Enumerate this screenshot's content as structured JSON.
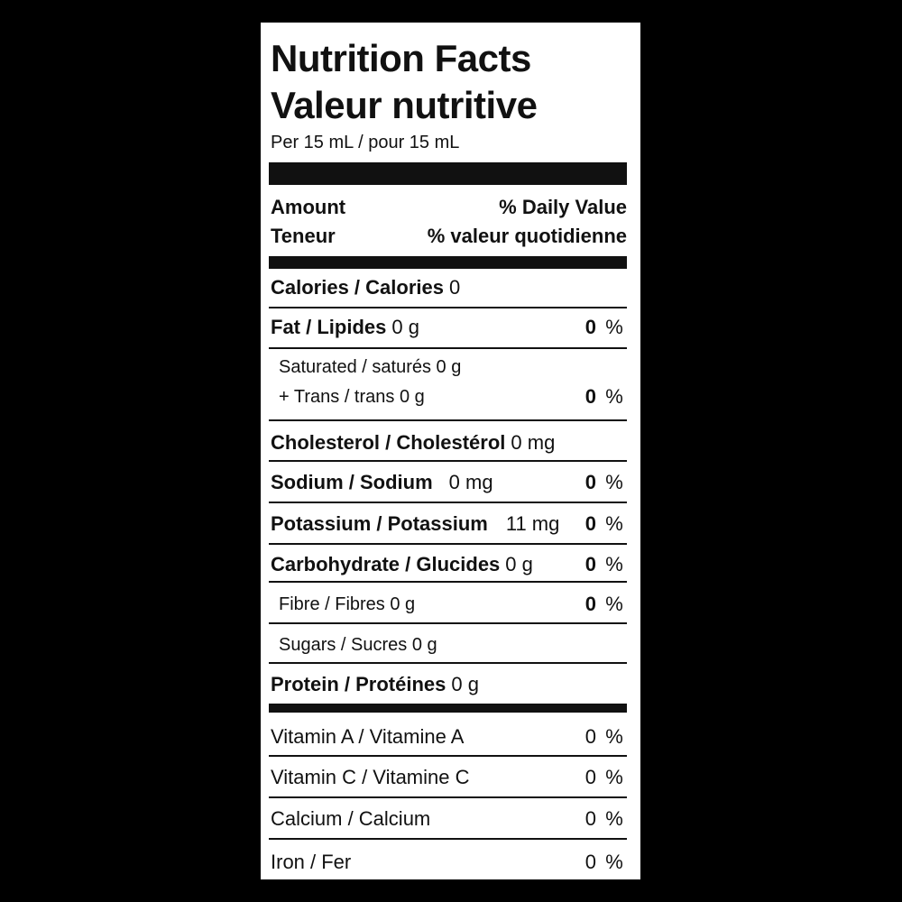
{
  "label": {
    "title_en": "Nutrition Facts",
    "title_fr": "Valeur nutritive",
    "serving": "Per 15 mL / pour 15 mL",
    "header": {
      "amount_en": "Amount",
      "amount_fr": "Teneur",
      "dv_en": "% Daily Value",
      "dv_fr": "% valeur quotidienne"
    },
    "rows": [
      {
        "name": "Calories / Calories",
        "amount": "0",
        "dv": "",
        "pct": ""
      },
      {
        "name": "Fat / Lipides",
        "amount": "0 g",
        "dv": "0",
        "pct": "%"
      },
      {
        "name": "Saturated / saturés 0 g",
        "amount": "",
        "dv": "",
        "pct": ""
      },
      {
        "name": "+ Trans / trans 0 g",
        "amount": "",
        "dv": "0",
        "pct": "%"
      },
      {
        "name": "Cholesterol / Cholestérol",
        "amount": "0 mg",
        "dv": "",
        "pct": ""
      },
      {
        "name": "Sodium / Sodium",
        "amount": "0 mg",
        "dv": "0",
        "pct": "%"
      },
      {
        "name": "Potassium / Potassium",
        "amount": "11 mg",
        "dv": "0",
        "pct": "%"
      },
      {
        "name": "Carbohydrate / Glucides",
        "amount": "0 g",
        "dv": "0",
        "pct": "%"
      },
      {
        "name": "Fibre / Fibres 0 g",
        "amount": "",
        "dv": "0",
        "pct": "%"
      },
      {
        "name": "Sugars / Sucres 0 g",
        "amount": "",
        "dv": "",
        "pct": ""
      },
      {
        "name": "Protein / Protéines",
        "amount": "0 g",
        "dv": "",
        "pct": ""
      },
      {
        "name": "Vitamin A / Vitamine A",
        "amount": "",
        "dv": "0",
        "pct": "%"
      },
      {
        "name": "Vitamin C / Vitamine C",
        "amount": "",
        "dv": "0",
        "pct": "%"
      },
      {
        "name": "Calcium / Calcium",
        "amount": "",
        "dv": "0",
        "pct": "%"
      },
      {
        "name": "Iron / Fer",
        "amount": "",
        "dv": "0",
        "pct": "%"
      }
    ]
  }
}
